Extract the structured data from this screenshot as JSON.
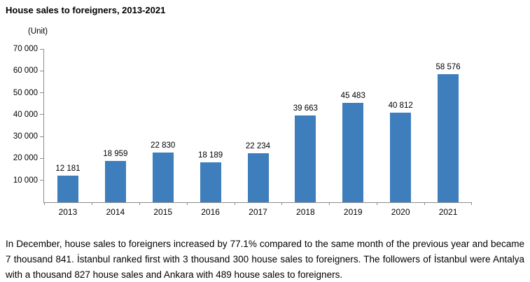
{
  "chart_data": {
    "type": "bar",
    "title": "House sales to foreigners, 2013-2021",
    "unit": "(Unit)",
    "categories": [
      "2013",
      "2014",
      "2015",
      "2016",
      "2017",
      "2018",
      "2019",
      "2020",
      "2021"
    ],
    "values": [
      12181,
      18959,
      22830,
      18189,
      22234,
      39663,
      45483,
      40812,
      58576
    ],
    "value_labels": [
      "12 181",
      "18 959",
      "22 830",
      "18 189",
      "22 234",
      "39 663",
      "45 483",
      "40 812",
      "58 576"
    ],
    "xlabel": "",
    "ylabel": "(Unit)",
    "ylim": [
      0,
      70000
    ],
    "y_ticks": [
      70000,
      60000,
      50000,
      40000,
      30000,
      20000,
      10000
    ],
    "y_tick_labels": [
      "70 000",
      "60 000",
      "50 000",
      "40 000",
      "30 000",
      "20 000",
      "10 000"
    ],
    "grid": false,
    "legend": false,
    "bar_color": "#3e7ebc",
    "axis_color": "#8c8c8c"
  },
  "footer": {
    "paragraph": "In December, house sales to foreigners increased by 77.1% compared to the same month of the previous year and became 7 thousand 841. İstanbul ranked first with 3 thousand 300 house sales to foreigners. The followers of İstanbul were Antalya with a thousand 827 house sales and Ankara with 489 house sales to foreigners."
  }
}
